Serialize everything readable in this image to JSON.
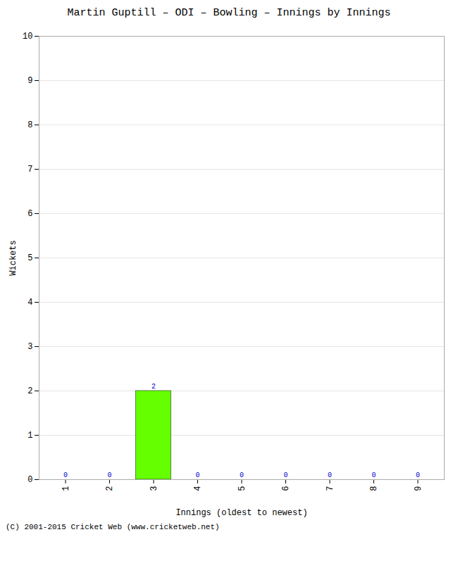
{
  "chart_data": {
    "type": "bar",
    "title": "Martin Guptill – ODI – Bowling – Innings by Innings",
    "xlabel": "Innings (oldest to newest)",
    "ylabel": "Wickets",
    "x": [
      1,
      2,
      3,
      4,
      5,
      6,
      7,
      8,
      9
    ],
    "values": [
      0,
      0,
      2,
      0,
      0,
      0,
      0,
      0,
      0
    ],
    "color": "#66ff00",
    "xlim": [
      0.4,
      9.6
    ],
    "xticks": [
      1,
      2,
      3,
      4,
      5,
      6,
      7,
      8,
      9
    ],
    "ylim": [
      0,
      10
    ],
    "yticks": [
      0,
      1,
      2,
      3,
      4,
      5,
      6,
      7,
      8,
      9,
      10
    ],
    "grid": true,
    "data_labels": true,
    "annotations": [
      "(C) 2001-2015 Cricket Web (www.cricketweb.net)"
    ]
  }
}
